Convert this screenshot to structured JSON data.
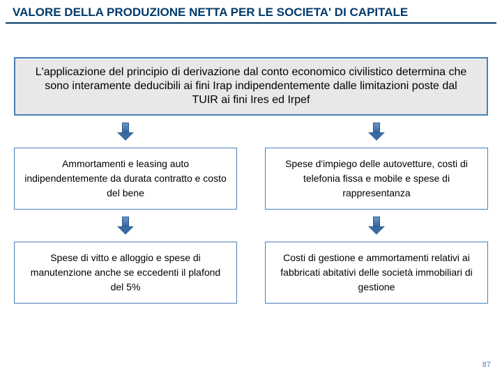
{
  "title": {
    "text": "VALORE DELLA PRODUZIONE NETTA PER LE SOCIETA' DI CAPITALE",
    "color": "#013a6a",
    "underline_color": "#013a6a",
    "fontsize": 17
  },
  "main_box": {
    "text": "L'applicazione del principio di derivazione dal conto economico civilistico determina che sono interamente deducibili ai fini Irap indipendentemente dalle limitazioni poste dal TUIR ai fini Ires ed Irpef",
    "border_color": "#4a7fb5",
    "background_color": "#e8e8e8",
    "fontsize": 16,
    "text_color": "#000000"
  },
  "arrow": {
    "fill_top": "#6a95c8",
    "fill_bottom": "#3a6aa0",
    "border": "#2a5a90"
  },
  "grid": {
    "border_color": "#4a7fb5",
    "background_color": "#ffffff",
    "fontsize": 14,
    "text_color": "#000000",
    "cells": {
      "top_left": "Ammortamenti e leasing auto indipendentemente da durata contratto e costo del bene",
      "top_right": "Spese d'impiego delle autovetture, costi di telefonia fissa e mobile e spese di rappresentanza",
      "bottom_left": "Spese di vitto e alloggio e spese di manutenzione anche se eccedenti il plafond del 5%",
      "bottom_right": "Costi di gestione e ammortamenti relativi ai fabbricati abitativi delle società immobiliari di gestione"
    }
  },
  "page_number": "87",
  "page_number_color": "#4a7fb5",
  "page_number_fontsize": 11
}
